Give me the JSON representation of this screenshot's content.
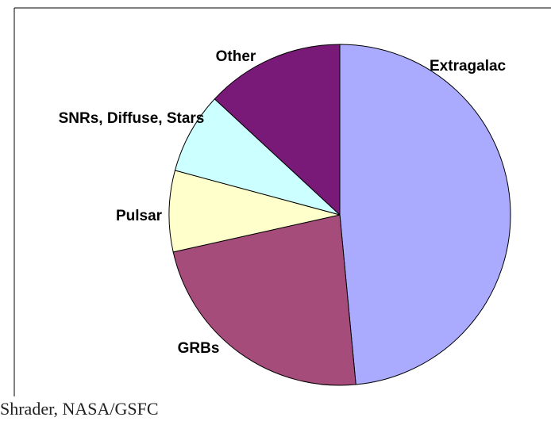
{
  "chart_data": {
    "type": "pie",
    "categories": [
      "Extragalac",
      "GRBs",
      "Pulsar",
      "SNRs, Diffuse, Stars",
      "Other"
    ],
    "values": [
      48.5,
      23,
      7.7,
      7.7,
      13.1
    ],
    "colors": [
      "#aaaaff",
      "#a64c7a",
      "#ffffcc",
      "#ccffff",
      "#7a1a78"
    ]
  },
  "footer": "Shrader, NASA/GSFC"
}
